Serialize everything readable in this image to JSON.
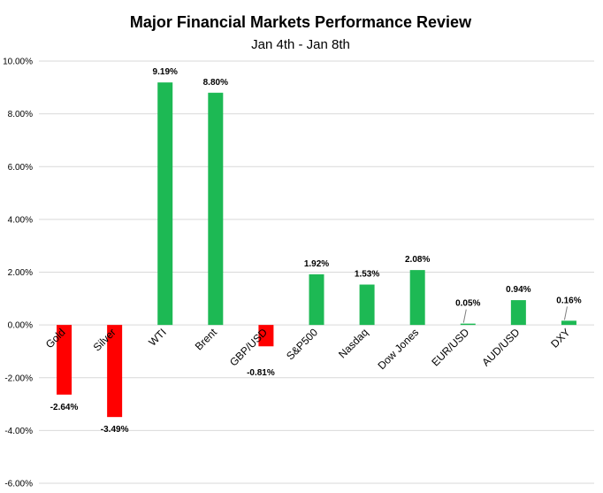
{
  "chart_data": {
    "type": "bar",
    "title": "Major Financial Markets Performance Review",
    "subtitle": "Jan 4th - Jan 8th",
    "xlabel": "",
    "ylabel": "",
    "ylim": [
      -6,
      10
    ],
    "yticks": [
      -6,
      -4,
      -2,
      0,
      2,
      4,
      6,
      8,
      10
    ],
    "ytick_labels": [
      "-6.00%",
      "-4.00%",
      "-2.00%",
      "0.00%",
      "2.00%",
      "4.00%",
      "6.00%",
      "8.00%",
      "10.00%"
    ],
    "grid": true,
    "legend": "none",
    "categories": [
      "Gold",
      "Silver",
      "WTI",
      "Brent",
      "GBP/USD",
      "S&P500",
      "Nasdaq",
      "Dow Jones",
      "EUR/USD",
      "AUD/USD",
      "DXY"
    ],
    "values": [
      -2.64,
      -3.49,
      9.19,
      8.8,
      -0.81,
      1.92,
      1.53,
      2.08,
      0.05,
      0.94,
      0.16
    ],
    "data_labels": [
      "-2.64%",
      "-3.49%",
      "9.19%",
      "8.80%",
      "-0.81%",
      "1.92%",
      "1.53%",
      "2.08%",
      "0.05%",
      "0.94%",
      "0.16%"
    ],
    "colors": {
      "positive": "#1db954",
      "negative": "#ff0000",
      "grid": "#d9d9d9"
    }
  }
}
